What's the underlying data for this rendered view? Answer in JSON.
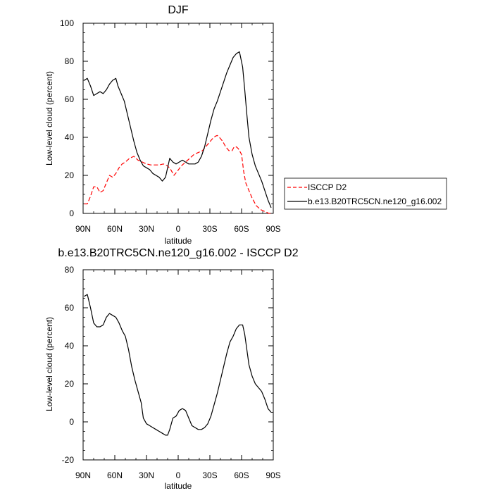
{
  "chart_data": [
    {
      "type": "line",
      "title": "DJF",
      "xlabel": "latitude",
      "ylabel": "Low-level cloud (percent)",
      "xlim": [
        -90,
        90
      ],
      "ylim": [
        0,
        100
      ],
      "x_ticks": [
        {
          "value": -90,
          "label": "90N"
        },
        {
          "value": -60,
          "label": "60N"
        },
        {
          "value": -30,
          "label": "30N"
        },
        {
          "value": 0,
          "label": "0"
        },
        {
          "value": 30,
          "label": "30S"
        },
        {
          "value": 60,
          "label": "60S"
        },
        {
          "value": 90,
          "label": "90S"
        }
      ],
      "y_ticks": [
        0,
        20,
        40,
        60,
        80,
        100
      ],
      "legend": {
        "position": "right"
      },
      "series": [
        {
          "name": "ISCCP D2",
          "color": "#ff0000",
          "dash": true,
          "points": [
            [
              -89,
              5
            ],
            [
              -86,
              5
            ],
            [
              -83,
              9
            ],
            [
              -80,
              14
            ],
            [
              -77,
              14
            ],
            [
              -74,
              11
            ],
            [
              -71,
              12
            ],
            [
              -68,
              16
            ],
            [
              -65,
              20
            ],
            [
              -62,
              19
            ],
            [
              -59,
              21
            ],
            [
              -56,
              24
            ],
            [
              -53,
              26
            ],
            [
              -50,
              27
            ],
            [
              -46,
              29
            ],
            [
              -42,
              30
            ],
            [
              -38,
              28
            ],
            [
              -34,
              27
            ],
            [
              -30,
              26
            ],
            [
              -26,
              25.5
            ],
            [
              -22,
              25.5
            ],
            [
              -18,
              25.5
            ],
            [
              -14,
              26
            ],
            [
              -10,
              25
            ],
            [
              -7,
              23
            ],
            [
              -4,
              20
            ],
            [
              -1,
              22
            ],
            [
              3,
              25
            ],
            [
              7,
              27
            ],
            [
              11,
              29
            ],
            [
              15,
              31
            ],
            [
              19,
              32
            ],
            [
              23,
              33
            ],
            [
              26,
              35
            ],
            [
              29,
              37
            ],
            [
              32,
              39
            ],
            [
              35,
              40.5
            ],
            [
              37,
              41
            ],
            [
              39,
              40
            ],
            [
              42,
              38
            ],
            [
              45,
              35
            ],
            [
              48,
              33
            ],
            [
              51,
              33
            ],
            [
              53,
              35
            ],
            [
              55,
              35
            ],
            [
              57,
              34
            ],
            [
              60,
              31
            ],
            [
              62,
              22
            ],
            [
              64,
              16
            ],
            [
              67,
              12
            ],
            [
              70,
              8
            ],
            [
              74,
              4
            ],
            [
              78,
              2
            ],
            [
              82,
              1
            ],
            [
              86,
              0
            ],
            [
              89,
              0
            ]
          ]
        },
        {
          "name": "b.e13.B20TRC5CN.ne120_g16.002",
          "color": "#000000",
          "dash": false,
          "points": [
            [
              -89,
              70
            ],
            [
              -86,
              71
            ],
            [
              -83,
              67
            ],
            [
              -80,
              62
            ],
            [
              -77,
              63
            ],
            [
              -74,
              64
            ],
            [
              -71,
              63
            ],
            [
              -68,
              65
            ],
            [
              -65,
              68
            ],
            [
              -62,
              70
            ],
            [
              -59,
              71
            ],
            [
              -57,
              67
            ],
            [
              -54,
              63
            ],
            [
              -51,
              59
            ],
            [
              -48,
              52
            ],
            [
              -45,
              45
            ],
            [
              -42,
              38
            ],
            [
              -39,
              32
            ],
            [
              -36,
              28
            ],
            [
              -33,
              25
            ],
            [
              -30,
              24
            ],
            [
              -27,
              23
            ],
            [
              -24,
              21
            ],
            [
              -21,
              20
            ],
            [
              -18,
              19
            ],
            [
              -15,
              17
            ],
            [
              -12,
              19
            ],
            [
              -10,
              24
            ],
            [
              -8,
              29
            ],
            [
              -5,
              27
            ],
            [
              -2,
              26
            ],
            [
              1,
              27
            ],
            [
              4,
              28
            ],
            [
              7,
              27
            ],
            [
              10,
              26
            ],
            [
              13,
              26
            ],
            [
              16,
              26
            ],
            [
              19,
              27
            ],
            [
              22,
              30
            ],
            [
              25,
              35
            ],
            [
              28,
              42
            ],
            [
              31,
              49
            ],
            [
              34,
              55
            ],
            [
              37,
              59
            ],
            [
              40,
              64
            ],
            [
              43,
              69
            ],
            [
              46,
              74
            ],
            [
              49,
              78
            ],
            [
              52,
              82
            ],
            [
              55,
              84
            ],
            [
              58,
              85
            ],
            [
              61,
              77
            ],
            [
              63,
              65
            ],
            [
              65,
              52
            ],
            [
              67,
              40
            ],
            [
              70,
              31
            ],
            [
              73,
              25
            ],
            [
              76,
              21
            ],
            [
              79,
              17
            ],
            [
              82,
              12
            ],
            [
              85,
              7
            ],
            [
              88,
              3
            ]
          ]
        }
      ]
    },
    {
      "type": "line",
      "title": "b.e13.B20TRC5CN.ne120_g16.002 - ISCCP D2",
      "xlabel": "latitude",
      "ylabel": "Low-level cloud (percent)",
      "xlim": [
        -90,
        90
      ],
      "ylim": [
        -20,
        80
      ],
      "x_ticks": [
        {
          "value": -90,
          "label": "90N"
        },
        {
          "value": -60,
          "label": "60N"
        },
        {
          "value": -30,
          "label": "30N"
        },
        {
          "value": 0,
          "label": "0"
        },
        {
          "value": 30,
          "label": "30S"
        },
        {
          "value": 60,
          "label": "60S"
        },
        {
          "value": 90,
          "label": "90S"
        }
      ],
      "y_ticks": [
        -20,
        0,
        20,
        40,
        60,
        80
      ],
      "series": [
        {
          "color": "#000000",
          "dash": false,
          "points": [
            [
              -89,
              66
            ],
            [
              -86,
              67
            ],
            [
              -83,
              60
            ],
            [
              -80,
              52
            ],
            [
              -77,
              50
            ],
            [
              -74,
              50
            ],
            [
              -71,
              51
            ],
            [
              -68,
              55
            ],
            [
              -65,
              57
            ],
            [
              -62,
              56
            ],
            [
              -59,
              55
            ],
            [
              -56,
              52
            ],
            [
              -53,
              48
            ],
            [
              -50,
              45
            ],
            [
              -47,
              38
            ],
            [
              -44,
              29
            ],
            [
              -41,
              22
            ],
            [
              -38,
              16
            ],
            [
              -35,
              10
            ],
            [
              -33,
              2
            ],
            [
              -30,
              -1
            ],
            [
              -27,
              -2
            ],
            [
              -24,
              -3
            ],
            [
              -21,
              -4
            ],
            [
              -18,
              -5
            ],
            [
              -15,
              -6
            ],
            [
              -12,
              -7
            ],
            [
              -10,
              -7
            ],
            [
              -8,
              -4
            ],
            [
              -5,
              2
            ],
            [
              -2,
              3
            ],
            [
              1,
              6
            ],
            [
              4,
              7
            ],
            [
              7,
              6
            ],
            [
              10,
              2
            ],
            [
              13,
              -2
            ],
            [
              16,
              -3
            ],
            [
              19,
              -4
            ],
            [
              22,
              -4
            ],
            [
              25,
              -3
            ],
            [
              28,
              -1
            ],
            [
              31,
              3
            ],
            [
              34,
              9
            ],
            [
              37,
              15
            ],
            [
              40,
              22
            ],
            [
              43,
              29
            ],
            [
              46,
              36
            ],
            [
              49,
              42
            ],
            [
              52,
              45
            ],
            [
              55,
              49
            ],
            [
              58,
              51
            ],
            [
              61,
              51
            ],
            [
              63,
              46
            ],
            [
              65,
              38
            ],
            [
              67,
              30
            ],
            [
              70,
              24
            ],
            [
              73,
              20
            ],
            [
              76,
              18
            ],
            [
              79,
              16
            ],
            [
              82,
              12
            ],
            [
              85,
              7
            ],
            [
              88,
              5
            ]
          ]
        }
      ]
    }
  ]
}
